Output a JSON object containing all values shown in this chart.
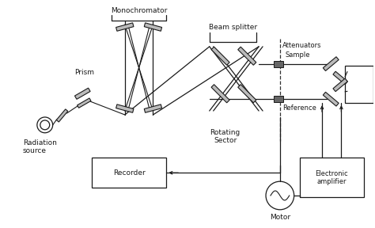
{
  "bg_color": "#ffffff",
  "line_color": "#1a1a1a",
  "labels": {
    "monochromator": "Monochromator",
    "prism": "Prism",
    "radiation_source": "Radiation\nsource",
    "beam_splitter": "Beam splitter",
    "attenuators": "Attenuators",
    "sample": "Sample",
    "reference": "Reference",
    "rotating_sector": "Rotating\nSector",
    "recorder": "Recorder",
    "motor": "Motor",
    "electronic_amplifier": "Electronic\namplifier"
  },
  "figsize": [
    4.74,
    2.88
  ],
  "dpi": 100
}
